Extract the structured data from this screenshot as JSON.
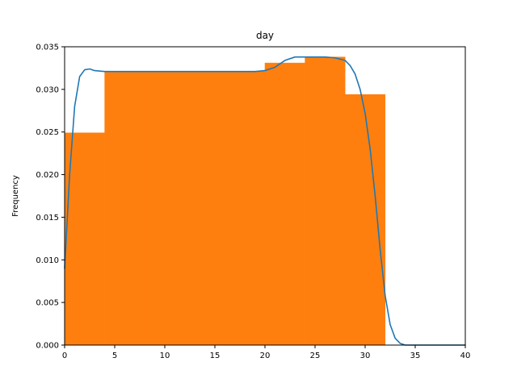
{
  "chart_data": {
    "type": "histogram",
    "title": "day",
    "xlabel": "",
    "ylabel": "Frequency",
    "xlim": [
      0,
      40
    ],
    "ylim": [
      0,
      0.035
    ],
    "x_ticks": [
      0,
      5,
      10,
      15,
      20,
      25,
      30,
      35,
      40
    ],
    "y_ticks": [
      0.0,
      0.005,
      0.01,
      0.015,
      0.02,
      0.025,
      0.03,
      0.035
    ],
    "grid": false,
    "legend": "none",
    "histogram": {
      "color": "#ff7f0e",
      "bins": [
        {
          "start": 0,
          "end": 4,
          "value": 0.0249
        },
        {
          "start": 4,
          "end": 8,
          "value": 0.0321
        },
        {
          "start": 8,
          "end": 12,
          "value": 0.0321
        },
        {
          "start": 12,
          "end": 16,
          "value": 0.0321
        },
        {
          "start": 16,
          "end": 20,
          "value": 0.0321
        },
        {
          "start": 20,
          "end": 24,
          "value": 0.0331
        },
        {
          "start": 24,
          "end": 28,
          "value": 0.0338
        },
        {
          "start": 28,
          "end": 32,
          "value": 0.0294
        }
      ]
    },
    "density_line": {
      "color": "#1f77b4",
      "x": [
        0,
        0.5,
        1,
        1.5,
        2,
        2.5,
        3,
        4,
        6,
        10,
        15,
        19,
        20,
        21,
        22,
        23,
        24,
        26,
        27,
        28,
        28.5,
        29,
        29.5,
        30,
        30.5,
        31,
        31.5,
        32,
        32.5,
        33,
        33.5,
        34,
        34.5,
        35,
        37,
        40
      ],
      "y": [
        0.009,
        0.02,
        0.028,
        0.0315,
        0.0323,
        0.0324,
        0.0322,
        0.0321,
        0.0321,
        0.0321,
        0.0321,
        0.0321,
        0.0322,
        0.0326,
        0.0334,
        0.0338,
        0.0338,
        0.0338,
        0.0337,
        0.0334,
        0.0328,
        0.0318,
        0.03,
        0.0272,
        0.023,
        0.0175,
        0.0112,
        0.0058,
        0.0024,
        0.0008,
        0.0002,
        0.0,
        0.0,
        0.0,
        0.0,
        0.0
      ]
    }
  }
}
